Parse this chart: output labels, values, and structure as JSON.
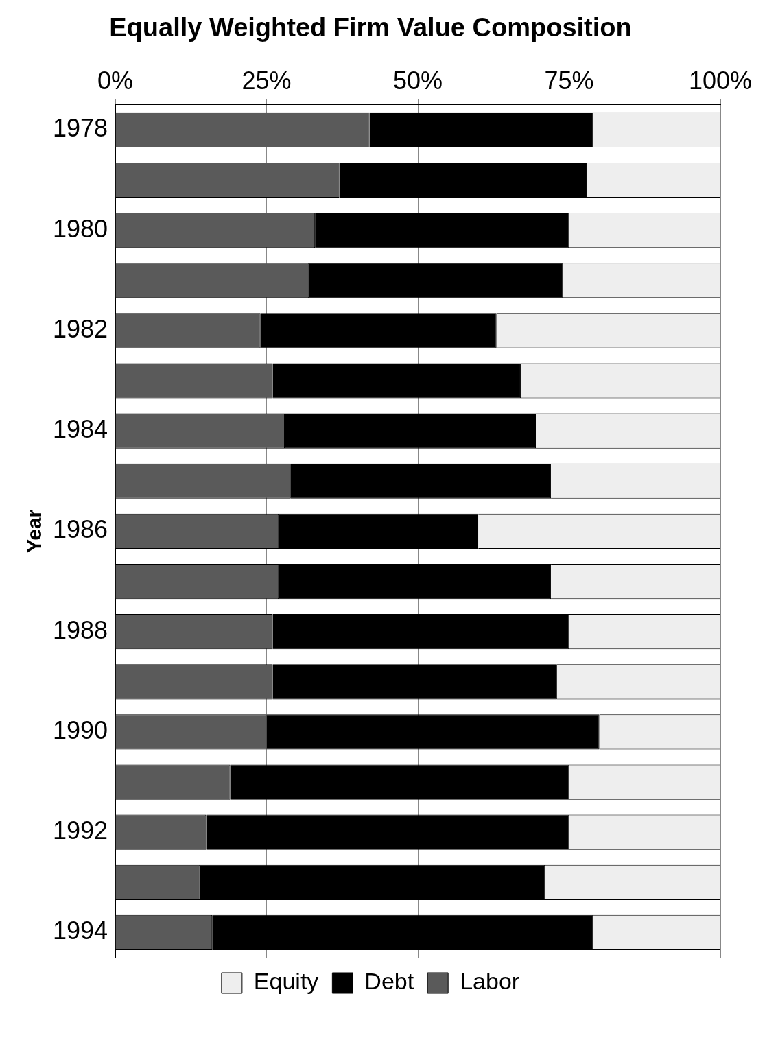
{
  "chart_data": {
    "type": "bar",
    "title": "Equally Weighted Firm Value Composition",
    "ylabel": "Year",
    "orientation": "horizontal",
    "stacked": true,
    "categories": [
      "1978",
      null,
      "1980",
      null,
      "1982",
      null,
      "1984",
      null,
      "1986",
      null,
      "1988",
      null,
      "1990",
      null,
      "1992",
      null,
      "1994"
    ],
    "series": [
      {
        "name": "Labor",
        "color": "#5a5a5a",
        "values": [
          42,
          37,
          33,
          32,
          24,
          26,
          28,
          29,
          27,
          27,
          26,
          26,
          25,
          19,
          15,
          14,
          16
        ]
      },
      {
        "name": "Debt",
        "color": "#000000",
        "values": [
          37,
          41,
          42,
          42,
          39,
          41,
          41.5,
          43,
          33,
          45,
          49,
          47,
          55,
          56,
          60,
          57,
          63
        ]
      },
      {
        "name": "Equity",
        "color": "#eeeeee",
        "values": [
          21,
          22,
          25,
          26,
          37,
          33,
          30.5,
          28,
          40,
          28,
          25,
          27,
          20,
          25,
          25,
          29,
          21
        ]
      }
    ],
    "xlim": [
      0,
      100
    ],
    "xticks": [
      {
        "value": 0,
        "label": "0%"
      },
      {
        "value": 25,
        "label": "25%"
      },
      {
        "value": 50,
        "label": "50%"
      },
      {
        "value": 75,
        "label": "75%"
      },
      {
        "value": 100,
        "label": "100%"
      }
    ],
    "grid": "x",
    "legend": "bottom"
  }
}
